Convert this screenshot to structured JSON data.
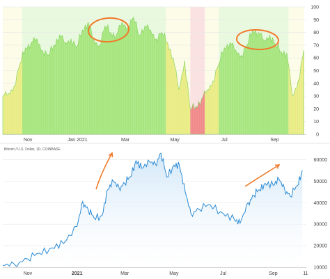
{
  "colors": {
    "green": "#a7e67f",
    "green_dark": "#7fd156",
    "yellow": "#e9ec84",
    "yellow_light": "#f7f2a6",
    "red": "#f08a8a",
    "line_blue": "#2a8ad4",
    "fill_blue": "#cfe6f8",
    "annotation_orange": "#f07a2a",
    "grid": "#e6e6e6",
    "axis": "#444444"
  },
  "chart_data": [
    {
      "type": "area",
      "title": "",
      "xlabel": "",
      "ylabel": "",
      "ylim": [
        0,
        100
      ],
      "y_ticks": [
        "0",
        "10",
        "20",
        "30",
        "40",
        "50",
        "60",
        "70",
        "80",
        "90",
        "100"
      ],
      "x_ticks": [
        {
          "label": "Nov",
          "at": "2020-11-01",
          "bold": false
        },
        {
          "label": "Jan 2021",
          "at": "2021-01-01",
          "bold": false
        },
        {
          "label": "Mar",
          "at": "2021-03-01",
          "bold": false
        },
        {
          "label": "May",
          "at": "2021-05-01",
          "bold": false
        },
        {
          "label": "Jul",
          "at": "2021-07-01",
          "bold": false
        },
        {
          "label": "Sep",
          "at": "2021-09-01",
          "bold": false
        }
      ],
      "x": [
        "2020-10-01",
        "2020-10-08",
        "2020-10-15",
        "2020-10-22",
        "2020-10-29",
        "2020-11-05",
        "2020-11-12",
        "2020-11-19",
        "2020-11-26",
        "2020-12-03",
        "2020-12-10",
        "2020-12-17",
        "2020-12-24",
        "2020-12-31",
        "2021-01-07",
        "2021-01-14",
        "2021-01-21",
        "2021-01-28",
        "2021-02-04",
        "2021-02-11",
        "2021-02-18",
        "2021-02-25",
        "2021-03-04",
        "2021-03-11",
        "2021-03-18",
        "2021-03-25",
        "2021-04-01",
        "2021-04-08",
        "2021-04-15",
        "2021-04-22",
        "2021-04-29",
        "2021-05-06",
        "2021-05-13",
        "2021-05-20",
        "2021-05-27",
        "2021-06-03",
        "2021-06-10",
        "2021-06-17",
        "2021-06-24",
        "2021-07-01",
        "2021-07-08",
        "2021-07-15",
        "2021-07-22",
        "2021-07-29",
        "2021-08-05",
        "2021-08-12",
        "2021-08-19",
        "2021-08-26",
        "2021-09-02",
        "2021-09-09",
        "2021-09-16",
        "2021-09-23",
        "2021-09-30",
        "2021-10-07"
      ],
      "values": [
        30,
        32,
        38,
        55,
        68,
        72,
        75,
        66,
        62,
        70,
        78,
        72,
        75,
        68,
        82,
        88,
        74,
        70,
        85,
        80,
        78,
        88,
        84,
        92,
        78,
        85,
        82,
        75,
        80,
        72,
        60,
        35,
        58,
        20,
        22,
        28,
        35,
        42,
        55,
        68,
        72,
        66,
        62,
        70,
        82,
        80,
        74,
        78,
        70,
        65,
        64,
        30,
        42,
        66
      ],
      "zones": [
        {
          "from": "2020-10-01",
          "to": "2020-10-25",
          "color": "yellow"
        },
        {
          "from": "2020-10-25",
          "to": "2021-04-20",
          "color": "green"
        },
        {
          "from": "2021-04-20",
          "to": "2021-05-20",
          "color": "yellow"
        },
        {
          "from": "2021-05-20",
          "to": "2021-06-07",
          "color": "red"
        },
        {
          "from": "2021-06-07",
          "to": "2021-06-24",
          "color": "yellow"
        },
        {
          "from": "2021-06-24",
          "to": "2021-09-18",
          "color": "green"
        },
        {
          "from": "2021-09-18",
          "to": "2021-10-07",
          "color": "yellow"
        }
      ]
    },
    {
      "type": "area",
      "title": "Bitcoin / U.S. Dollar, 1D, COINBASE",
      "xlabel": "",
      "ylabel": "",
      "ylim": [
        10000,
        65000
      ],
      "y_ticks": [
        "10000",
        "20000",
        "30000",
        "40000",
        "50000",
        "60000"
      ],
      "x_ticks": [
        {
          "label": "Nov",
          "at": "2020-11-01",
          "bold": false
        },
        {
          "label": "2021",
          "at": "2021-01-01",
          "bold": true
        },
        {
          "label": "Mar",
          "at": "2021-03-01",
          "bold": false
        },
        {
          "label": "May",
          "at": "2021-05-01",
          "bold": false
        },
        {
          "label": "Jul",
          "at": "2021-07-01",
          "bold": false
        },
        {
          "label": "Sep",
          "at": "2021-09-01",
          "bold": false
        },
        {
          "label": "11",
          "at": "2021-10-11",
          "bold": false
        }
      ],
      "x": [
        "2020-10-01",
        "2020-10-15",
        "2020-11-01",
        "2020-11-15",
        "2020-12-01",
        "2020-12-15",
        "2021-01-01",
        "2021-01-08",
        "2021-01-15",
        "2021-01-22",
        "2021-02-01",
        "2021-02-08",
        "2021-02-15",
        "2021-02-22",
        "2021-03-01",
        "2021-03-08",
        "2021-03-15",
        "2021-03-22",
        "2021-04-01",
        "2021-04-08",
        "2021-04-15",
        "2021-04-22",
        "2021-05-01",
        "2021-05-08",
        "2021-05-15",
        "2021-05-22",
        "2021-06-01",
        "2021-06-15",
        "2021-07-01",
        "2021-07-15",
        "2021-07-22",
        "2021-08-01",
        "2021-08-08",
        "2021-08-15",
        "2021-08-22",
        "2021-09-01",
        "2021-09-08",
        "2021-09-15",
        "2021-09-22",
        "2021-10-01",
        "2021-10-07"
      ],
      "values": [
        10800,
        11500,
        13800,
        16500,
        19000,
        21000,
        29000,
        40500,
        36500,
        33000,
        34000,
        46000,
        50000,
        47000,
        49000,
        52000,
        59500,
        56000,
        59000,
        58000,
        63000,
        52000,
        57500,
        57000,
        45000,
        35000,
        37000,
        39000,
        35000,
        32000,
        30500,
        40000,
        43500,
        46000,
        49000,
        48000,
        51000,
        46500,
        43000,
        48000,
        55000
      ],
      "annotations": [
        "up-arrow-feb",
        "up-arrow-aug"
      ]
    }
  ],
  "top_chart": {
    "y_ticks": [
      "0",
      "10",
      "20",
      "30",
      "40",
      "50",
      "60",
      "70",
      "80",
      "90",
      "100"
    ],
    "x_ticks": [
      "Nov",
      "Jan 2021",
      "Mar",
      "May",
      "Jul",
      "Sep"
    ]
  },
  "bottom_chart": {
    "source": "Bitcoin / U.S. Dollar, 1D, COINBASE",
    "y_ticks": [
      "10000",
      "20000",
      "30000",
      "40000",
      "50000",
      "60000"
    ],
    "x_ticks": [
      "Nov",
      "2021",
      "Mar",
      "May",
      "Jul",
      "Sep",
      "11"
    ]
  }
}
